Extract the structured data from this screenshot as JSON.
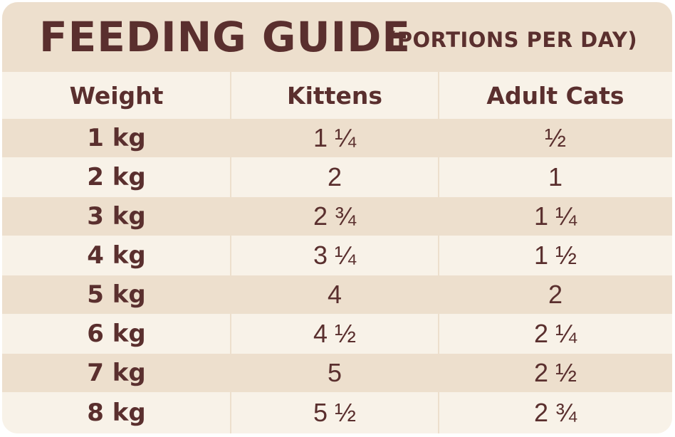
{
  "title": {
    "main": "FEEDING GUIDE",
    "sub": "(PORTIONS PER DAY)"
  },
  "table": {
    "headers": [
      "Weight",
      "Kittens",
      "Adult Cats"
    ],
    "rows": [
      [
        "1 kg",
        "1 ¼",
        "½"
      ],
      [
        "2 kg",
        "2",
        "1"
      ],
      [
        "3 kg",
        "2 ¾",
        "1 ¼"
      ],
      [
        "4 kg",
        "3 ¼",
        "1 ½"
      ],
      [
        "5 kg",
        "4",
        "2"
      ],
      [
        "6 kg",
        "4 ½",
        "2 ¼"
      ],
      [
        "7 kg",
        "5",
        "2 ½"
      ],
      [
        "8 kg",
        "5 ½",
        "2 ¾"
      ]
    ]
  },
  "colors": {
    "text": "#5a2f2e",
    "band": "#eddfcd",
    "background": "#f8f2e8"
  }
}
